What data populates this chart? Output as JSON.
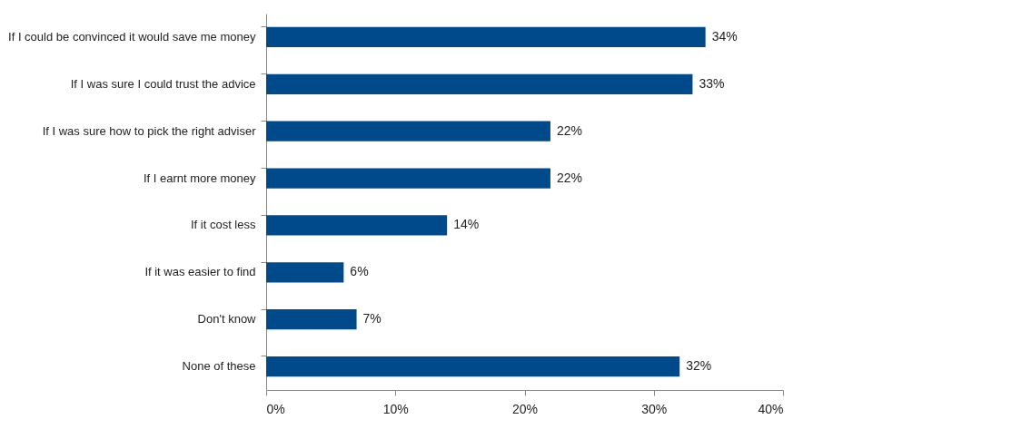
{
  "chart_data": {
    "type": "bar",
    "orientation": "horizontal",
    "categories": [
      "If I could be convinced it would save me money",
      "If I was sure I could trust the advice",
      "If I was sure how to pick the right adviser",
      "If I earnt more money",
      "If it cost less",
      "If it was easier to find",
      "Don't know",
      "None of these"
    ],
    "values": [
      34,
      33,
      22,
      22,
      14,
      6,
      7,
      32
    ],
    "value_labels": [
      "34%",
      "33%",
      "22%",
      "22%",
      "14%",
      "6%",
      "7%",
      "32%"
    ],
    "color": "#004a8c",
    "xlim": [
      0,
      40
    ],
    "xticks": [
      {
        "value": 0,
        "label": "0%"
      },
      {
        "value": 10,
        "label": "10%"
      },
      {
        "value": 20,
        "label": "20%"
      },
      {
        "value": 30,
        "label": "30%"
      },
      {
        "value": 40,
        "label": "40%"
      }
    ],
    "grid": false
  }
}
